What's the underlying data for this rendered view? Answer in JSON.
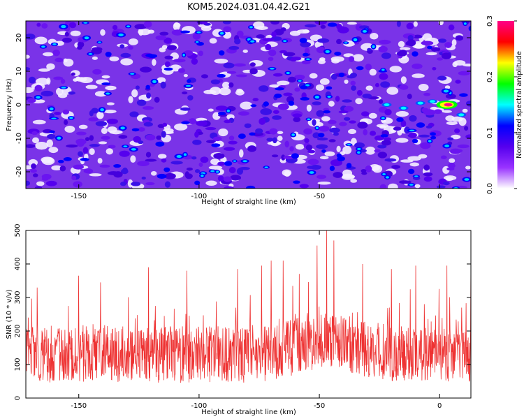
{
  "title": "KOM5.2024.031.04.42.G21",
  "chart_data": [
    {
      "type": "heatmap",
      "xlabel": "Height of straight line (km)",
      "ylabel": "Frequency (Hz)",
      "xlim": [
        -172,
        13
      ],
      "ylim": [
        -25,
        25
      ],
      "xticks": [
        -150,
        -100,
        -50,
        0
      ],
      "xtick_labels": [
        "-150",
        "-100",
        "-50",
        "0"
      ],
      "yticks": [
        -20,
        -10,
        0,
        10,
        20
      ],
      "ytick_labels": [
        "-20",
        "-10",
        "0",
        "10",
        "20"
      ],
      "colorbar": {
        "label": "Normalized spectral amplitude",
        "range": [
          0,
          0.3
        ],
        "ticks": [
          0,
          0.1,
          0.2,
          0.3
        ],
        "tick_labels": [
          "0.0",
          "0.1",
          "0.2",
          "0.3"
        ],
        "colors": [
          "#ffffff",
          "#9933ff",
          "#5500ee",
          "#0000ff",
          "#00ffff",
          "#00ff00",
          "#ffff00",
          "#ff0000",
          "#ff0088"
        ]
      },
      "peak": {
        "x": 3,
        "y": 0,
        "value": 0.3
      }
    },
    {
      "type": "line",
      "xlabel": "Height of straight line (km)",
      "ylabel": "SNR (10 * v/v)",
      "xlim": [
        -172,
        13
      ],
      "ylim": [
        0,
        500
      ],
      "xticks": [
        -150,
        -100,
        -50,
        0
      ],
      "xtick_labels": [
        "-150",
        "-100",
        "-50",
        "0"
      ],
      "yticks": [
        0,
        100,
        200,
        300,
        400,
        500
      ],
      "ytick_labels": [
        "0",
        "100",
        "200",
        "300",
        "400",
        "500"
      ],
      "color": "#ee3333",
      "baseline_mean": 130,
      "peak": {
        "x": -47,
        "value": 500
      },
      "spikes": [
        {
          "x": -171,
          "value": 240
        },
        {
          "x": -150,
          "value": 365
        },
        {
          "x": -141,
          "value": 345
        },
        {
          "x": -121,
          "value": 390
        },
        {
          "x": -105,
          "value": 380
        },
        {
          "x": -84,
          "value": 385
        },
        {
          "x": -74,
          "value": 395
        },
        {
          "x": -70,
          "value": 410
        },
        {
          "x": -65,
          "value": 410
        },
        {
          "x": -51,
          "value": 455
        },
        {
          "x": -47,
          "value": 500
        },
        {
          "x": -44,
          "value": 470
        },
        {
          "x": -32,
          "value": 400
        },
        {
          "x": -20,
          "value": 385
        },
        {
          "x": -10,
          "value": 395
        },
        {
          "x": 3,
          "value": 395
        },
        {
          "x": 13,
          "value": 410
        }
      ]
    }
  ]
}
